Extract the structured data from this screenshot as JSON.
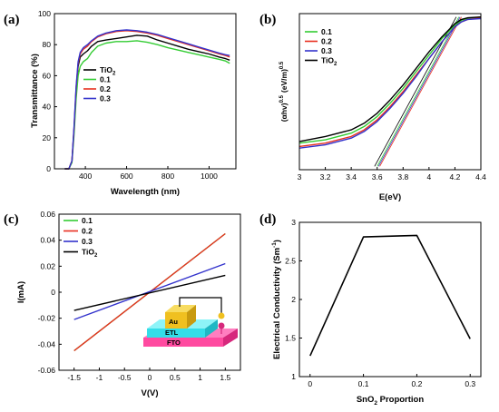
{
  "panels": {
    "a": {
      "label": "(a)"
    },
    "b": {
      "label": "(b)"
    },
    "c": {
      "label": "(c)"
    },
    "d": {
      "label": "(d)"
    }
  },
  "chart_data": [
    {
      "id": "a",
      "type": "line",
      "xlabel": "Wavelength (nm)",
      "ylabel": "Transmittance (%)",
      "xlim": [
        250,
        1130
      ],
      "ylim": [
        0,
        100
      ],
      "xticks": [
        400,
        600,
        800,
        1000
      ],
      "yticks": [
        0,
        20,
        40,
        60,
        80,
        100
      ],
      "legend_position": "center-left",
      "series": [
        {
          "name": "TiO2",
          "label": "TiO",
          "sub": "2",
          "color": "#000000",
          "x": [
            300,
            320,
            335,
            345,
            355,
            365,
            375,
            390,
            410,
            430,
            460,
            500,
            550,
            600,
            650,
            700,
            750,
            800,
            850,
            900,
            950,
            1000,
            1050,
            1080,
            1100
          ],
          "y": [
            0,
            0,
            5,
            25,
            50,
            66,
            72,
            74,
            76,
            79,
            82,
            83,
            84,
            85,
            86,
            85.5,
            83,
            81,
            79,
            77,
            75.5,
            74,
            72,
            71,
            70
          ]
        },
        {
          "name": "0.1",
          "label": "0.1",
          "sub": "",
          "color": "#33cc33",
          "x": [
            300,
            320,
            335,
            345,
            355,
            365,
            375,
            390,
            410,
            430,
            460,
            500,
            550,
            600,
            650,
            700,
            750,
            800,
            850,
            900,
            950,
            1000,
            1050,
            1080,
            1100
          ],
          "y": [
            0,
            0,
            4,
            22,
            45,
            60,
            66,
            69,
            71,
            75,
            79,
            81,
            82,
            82,
            82.5,
            81.5,
            80,
            78,
            76.5,
            75,
            73.5,
            72,
            70.5,
            69.5,
            68
          ]
        },
        {
          "name": "0.2",
          "label": "0.2",
          "sub": "",
          "color": "#e83020",
          "x": [
            300,
            320,
            335,
            345,
            355,
            365,
            375,
            390,
            410,
            430,
            460,
            500,
            550,
            600,
            650,
            700,
            750,
            800,
            850,
            900,
            950,
            1000,
            1050,
            1080,
            1100
          ],
          "y": [
            0,
            0,
            5,
            26,
            52,
            68,
            74,
            77,
            79,
            82,
            85,
            87,
            88.5,
            89,
            88.5,
            87.5,
            86,
            84,
            82,
            80,
            78,
            76,
            74,
            73,
            72
          ]
        },
        {
          "name": "0.3",
          "label": "0.3",
          "sub": "",
          "color": "#3333cc",
          "x": [
            300,
            320,
            335,
            345,
            355,
            365,
            375,
            390,
            410,
            430,
            460,
            500,
            550,
            600,
            650,
            700,
            750,
            800,
            850,
            900,
            950,
            1000,
            1050,
            1080,
            1100
          ],
          "y": [
            0,
            0,
            5,
            27,
            53,
            69,
            75,
            78,
            80,
            82.5,
            85.5,
            87.5,
            89,
            89.5,
            89,
            88,
            86.5,
            84.5,
            82.5,
            80.5,
            78.5,
            76.5,
            74.5,
            73.5,
            73
          ]
        }
      ]
    },
    {
      "id": "b",
      "type": "line",
      "xlabel": "E(eV)",
      "ylabel": "(αhν)^0.5 (eV/m)^0.5",
      "ylabel_parts": [
        "(α",
        "hv)",
        "0.5",
        "(eV/m)",
        "0.5"
      ],
      "xlim": [
        3.0,
        4.4
      ],
      "xticks": [
        3,
        3.2,
        3.4,
        3.6,
        3.8,
        4,
        4.2,
        4.4
      ],
      "legend_position": "top-left",
      "series": [
        {
          "name": "0.1",
          "label": "0.1",
          "sub": "",
          "color": "#33cc33",
          "x": [
            3.0,
            3.2,
            3.4,
            3.5,
            3.6,
            3.7,
            3.8,
            3.9,
            4.0,
            4.1,
            4.2,
            4.25,
            4.3,
            4.4
          ],
          "y": [
            0.14,
            0.16,
            0.2,
            0.24,
            0.3,
            0.38,
            0.47,
            0.57,
            0.67,
            0.77,
            0.85,
            0.88,
            0.89,
            0.9
          ]
        },
        {
          "name": "0.2",
          "label": "0.2",
          "sub": "",
          "color": "#e83020",
          "x": [
            3.0,
            3.2,
            3.4,
            3.5,
            3.6,
            3.7,
            3.8,
            3.9,
            4.0,
            4.1,
            4.2,
            4.25,
            4.3,
            4.4
          ],
          "y": [
            0.12,
            0.14,
            0.18,
            0.22,
            0.28,
            0.36,
            0.45,
            0.55,
            0.65,
            0.75,
            0.84,
            0.87,
            0.885,
            0.895
          ]
        },
        {
          "name": "0.3",
          "label": "0.3",
          "sub": "",
          "color": "#3333cc",
          "x": [
            3.0,
            3.2,
            3.4,
            3.5,
            3.6,
            3.7,
            3.8,
            3.9,
            4.0,
            4.1,
            4.2,
            4.25,
            4.3,
            4.4
          ],
          "y": [
            0.11,
            0.13,
            0.17,
            0.21,
            0.27,
            0.35,
            0.44,
            0.54,
            0.65,
            0.75,
            0.84,
            0.87,
            0.885,
            0.89
          ]
        },
        {
          "name": "TiO2",
          "label": "TiO",
          "sub": "2",
          "color": "#000000",
          "x": [
            3.0,
            3.2,
            3.4,
            3.5,
            3.6,
            3.7,
            3.8,
            3.9,
            4.0,
            4.1,
            4.2,
            4.25,
            4.3,
            4.4
          ],
          "y": [
            0.15,
            0.18,
            0.22,
            0.26,
            0.32,
            0.4,
            0.49,
            0.59,
            0.69,
            0.78,
            0.86,
            0.885,
            0.895,
            0.9
          ]
        }
      ],
      "tangent_lines": [
        {
          "color": "#33cc33",
          "x": [
            3.6,
            4.23
          ],
          "y": [
            0.0,
            0.9
          ]
        },
        {
          "color": "#e83020",
          "x": [
            3.62,
            4.25
          ],
          "y": [
            0.0,
            0.9
          ]
        },
        {
          "color": "#3333cc",
          "x": [
            3.61,
            4.24
          ],
          "y": [
            0.0,
            0.9
          ]
        },
        {
          "color": "#000000",
          "x": [
            3.58,
            4.21
          ],
          "y": [
            0.0,
            0.9
          ]
        }
      ]
    },
    {
      "id": "c",
      "type": "line",
      "xlabel": "V(V)",
      "ylabel": "I(mA)",
      "xlim": [
        -1.8,
        1.8
      ],
      "ylim": [
        -0.06,
        0.06
      ],
      "xticks": [
        -1.5,
        -1,
        -0.5,
        0,
        0.5,
        1,
        1.5
      ],
      "yticks": [
        -0.06,
        -0.04,
        -0.02,
        0,
        0.02,
        0.04,
        0.06
      ],
      "legend_position": "top-left",
      "series": [
        {
          "name": "0.1",
          "label": "0.1",
          "sub": "",
          "color": "#33cc33",
          "x": [
            -1.5,
            1.5
          ],
          "y": [
            -0.045,
            0.045
          ]
        },
        {
          "name": "0.2",
          "label": "0.2",
          "sub": "",
          "color": "#e83020",
          "x": [
            -1.5,
            1.5
          ],
          "y": [
            -0.045,
            0.045
          ]
        },
        {
          "name": "0.3",
          "label": "0.3",
          "sub": "",
          "color": "#3333cc",
          "x": [
            -1.5,
            1.5
          ],
          "y": [
            -0.021,
            0.022
          ]
        },
        {
          "name": "TiO2",
          "label": "TiO",
          "sub": "2",
          "color": "#000000",
          "x": [
            -1.5,
            1.5
          ],
          "y": [
            -0.014,
            0.013
          ]
        }
      ],
      "inset": {
        "layers": [
          "Au",
          "ETL",
          "FTO"
        ]
      }
    },
    {
      "id": "d",
      "type": "line",
      "xlabel": "SnO2 Proportion",
      "xlabel_parts": [
        "SnO",
        "2",
        " Proportion"
      ],
      "ylabel": "Electrical Conductivity (Sm-1)",
      "ylabel_parts": [
        "Electrical Conductivity (Sm",
        "-1",
        ")"
      ],
      "xlim": [
        -0.02,
        0.32
      ],
      "ylim": [
        1,
        3
      ],
      "xticks": [
        0,
        0.1,
        0.2,
        0.3
      ],
      "yticks": [
        1,
        1.5,
        2,
        2.5,
        3
      ],
      "series": [
        {
          "name": "",
          "color": "#000000",
          "x": [
            0,
            0.1,
            0.2,
            0.3
          ],
          "y": [
            1.27,
            2.81,
            2.83,
            1.49
          ]
        }
      ]
    }
  ]
}
